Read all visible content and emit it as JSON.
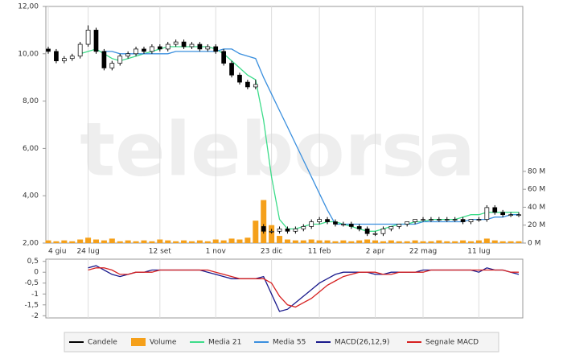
{
  "watermark": "teleborsa",
  "chart_data": [
    {
      "type": "candlestick",
      "categories": [
        "4 giu",
        null,
        null,
        null,
        null,
        "24 lug",
        null,
        null,
        null,
        null,
        null,
        null,
        null,
        null,
        "12 set",
        null,
        null,
        null,
        null,
        null,
        null,
        "1 nov",
        null,
        null,
        null,
        null,
        null,
        null,
        "23 dic",
        null,
        null,
        null,
        null,
        null,
        "11 feb",
        null,
        null,
        null,
        null,
        null,
        null,
        "2 apr",
        null,
        null,
        null,
        null,
        null,
        "22 mag",
        null,
        null,
        null,
        null,
        null,
        null,
        "11 lug",
        null,
        null,
        null,
        null,
        null
      ],
      "candles": {
        "name": "Candele",
        "color": "#000000",
        "open": [
          10.2,
          10.1,
          9.7,
          9.8,
          9.9,
          10.4,
          11.0,
          10.1,
          9.4,
          9.6,
          9.9,
          10.0,
          10.2,
          10.1,
          10.3,
          10.2,
          10.4,
          10.5,
          10.3,
          10.4,
          10.2,
          10.3,
          10.1,
          9.6,
          9.1,
          8.8,
          8.6,
          2.7,
          2.5,
          2.5,
          2.6,
          2.5,
          2.6,
          2.7,
          2.9,
          3.0,
          2.9,
          2.8,
          2.8,
          2.7,
          2.6,
          2.4,
          2.4,
          2.6,
          2.7,
          2.8,
          2.9,
          3.0,
          3.0,
          3.0,
          3.0,
          3.0,
          3.0,
          2.9,
          3.0,
          3.0,
          3.5,
          3.3,
          3.2,
          3.2
        ],
        "high": [
          10.3,
          10.2,
          9.9,
          10.0,
          10.5,
          11.2,
          11.1,
          10.2,
          9.7,
          10.0,
          10.1,
          10.3,
          10.3,
          10.4,
          10.4,
          10.5,
          10.6,
          10.6,
          10.5,
          10.5,
          10.4,
          10.4,
          10.2,
          9.7,
          9.2,
          8.9,
          8.9,
          2.8,
          2.6,
          2.7,
          2.7,
          2.7,
          2.8,
          3.0,
          3.1,
          3.1,
          3.0,
          2.9,
          2.9,
          2.8,
          2.7,
          2.5,
          2.7,
          2.7,
          2.8,
          2.9,
          3.0,
          3.1,
          3.1,
          3.1,
          3.1,
          3.1,
          3.1,
          3.0,
          3.1,
          3.6,
          3.6,
          3.4,
          3.3,
          3.3
        ],
        "low": [
          10.0,
          9.6,
          9.6,
          9.7,
          9.8,
          10.3,
          10.0,
          9.3,
          9.3,
          9.5,
          9.8,
          9.9,
          10.0,
          10.0,
          10.1,
          10.1,
          10.3,
          10.2,
          10.2,
          10.1,
          10.1,
          10.0,
          9.5,
          9.0,
          8.7,
          8.5,
          8.5,
          2.4,
          2.4,
          2.4,
          2.4,
          2.4,
          2.5,
          2.6,
          2.8,
          2.8,
          2.7,
          2.7,
          2.6,
          2.5,
          2.3,
          2.3,
          2.3,
          2.5,
          2.6,
          2.7,
          2.8,
          2.9,
          2.9,
          2.9,
          2.9,
          2.9,
          2.8,
          2.8,
          2.9,
          2.9,
          3.2,
          3.1,
          3.1,
          3.1
        ],
        "close": [
          10.1,
          9.7,
          9.8,
          9.9,
          10.4,
          11.0,
          10.1,
          9.4,
          9.6,
          9.9,
          10.0,
          10.2,
          10.1,
          10.3,
          10.2,
          10.4,
          10.5,
          10.3,
          10.4,
          10.2,
          10.3,
          10.1,
          9.6,
          9.1,
          8.8,
          8.6,
          8.7,
          2.5,
          2.5,
          2.6,
          2.5,
          2.6,
          2.7,
          2.9,
          3.0,
          2.9,
          2.8,
          2.8,
          2.7,
          2.6,
          2.4,
          2.4,
          2.6,
          2.7,
          2.8,
          2.9,
          3.0,
          3.0,
          3.0,
          3.0,
          3.0,
          3.0,
          2.9,
          3.0,
          3.0,
          3.5,
          3.3,
          3.2,
          3.2,
          3.2
        ]
      },
      "series": [
        {
          "name": "Volume",
          "type": "bar",
          "axis": "y2",
          "color": "#f5a01a",
          "values": [
            3,
            2,
            3,
            2,
            4,
            6,
            4,
            3,
            5,
            2,
            3,
            2,
            3,
            2,
            4,
            3,
            2,
            3,
            2,
            3,
            2,
            4,
            3,
            5,
            4,
            6,
            25,
            48,
            20,
            8,
            4,
            3,
            3,
            4,
            3,
            3,
            2,
            3,
            2,
            3,
            4,
            3,
            2,
            3,
            2,
            2,
            3,
            2,
            2,
            3,
            2,
            2,
            3,
            2,
            3,
            5,
            3,
            2,
            2,
            2
          ]
        },
        {
          "name": "Media 21",
          "type": "line",
          "color": "#3ddc8a",
          "values": [
            null,
            null,
            null,
            null,
            10.0,
            10.1,
            10.2,
            10.0,
            9.8,
            9.7,
            9.8,
            9.9,
            10.0,
            10.1,
            10.2,
            10.3,
            10.3,
            10.3,
            10.3,
            10.3,
            10.3,
            10.2,
            10.0,
            9.7,
            9.4,
            9.1,
            8.9,
            7.2,
            4.8,
            3.0,
            2.6,
            2.6,
            2.7,
            2.8,
            2.8,
            2.9,
            2.9,
            2.8,
            2.7,
            2.6,
            2.5,
            2.5,
            2.6,
            2.7,
            2.8,
            2.8,
            2.9,
            2.9,
            3.0,
            3.0,
            3.0,
            3.0,
            3.1,
            3.2,
            3.2,
            3.3,
            3.3,
            3.3,
            3.3,
            3.3
          ]
        },
        {
          "name": "Media 55",
          "type": "line",
          "color": "#3a8fde",
          "values": [
            null,
            null,
            null,
            null,
            null,
            null,
            null,
            10.1,
            10.1,
            10.0,
            10.0,
            10.0,
            10.0,
            10.0,
            10.0,
            10.0,
            10.1,
            10.1,
            10.1,
            10.1,
            10.1,
            10.1,
            10.2,
            10.2,
            10.0,
            9.9,
            9.8,
            9.0,
            8.3,
            7.6,
            6.9,
            6.2,
            5.5,
            4.8,
            4.1,
            3.4,
            2.8,
            2.8,
            2.8,
            2.8,
            2.8,
            2.8,
            2.8,
            2.8,
            2.8,
            2.8,
            2.8,
            2.9,
            2.9,
            2.9,
            2.9,
            2.9,
            2.9,
            3.0,
            3.0,
            3.0,
            3.1,
            3.1,
            3.2,
            3.2
          ]
        }
      ],
      "ylim": [
        2,
        12
      ],
      "yticks": [
        {
          "value": 2,
          "label": "2,00"
        },
        {
          "value": 4,
          "label": "4,00"
        },
        {
          "value": 6,
          "label": "6,00"
        },
        {
          "value": 8,
          "label": "8,00"
        },
        {
          "value": 10,
          "label": "10,00"
        },
        {
          "value": 12,
          "label": "12,00"
        }
      ],
      "y2lim": [
        0,
        264
      ],
      "y2ticks": [
        {
          "value": 0,
          "label": "0 M"
        },
        {
          "value": 20,
          "label": "20 M"
        },
        {
          "value": 40,
          "label": "40 M"
        },
        {
          "value": 60,
          "label": "60 M"
        },
        {
          "value": 80,
          "label": "80 M"
        }
      ]
    },
    {
      "type": "line",
      "series": [
        {
          "name": "MACD(26,12,9)",
          "color": "#1a1a8c",
          "values": [
            null,
            null,
            null,
            null,
            null,
            0.2,
            0.3,
            0.1,
            -0.1,
            -0.2,
            -0.1,
            0.0,
            0.0,
            0.1,
            0.1,
            0.1,
            0.1,
            0.1,
            0.1,
            0.1,
            0.0,
            -0.1,
            -0.2,
            -0.3,
            -0.3,
            -0.3,
            -0.3,
            -0.2,
            -1.0,
            -1.8,
            -1.7,
            -1.4,
            -1.1,
            -0.8,
            -0.5,
            -0.3,
            -0.1,
            0.0,
            0.0,
            0.0,
            0.0,
            -0.1,
            -0.1,
            0.0,
            0.0,
            0.0,
            0.0,
            0.1,
            0.1,
            0.1,
            0.1,
            0.1,
            0.1,
            0.1,
            0.0,
            0.2,
            0.1,
            0.1,
            0.0,
            -0.1
          ]
        },
        {
          "name": "Segnale MACD",
          "color": "#d62020",
          "values": [
            null,
            null,
            null,
            null,
            null,
            0.1,
            0.2,
            0.2,
            0.1,
            -0.1,
            -0.1,
            0.0,
            0.0,
            0.0,
            0.1,
            0.1,
            0.1,
            0.1,
            0.1,
            0.1,
            0.1,
            0.0,
            -0.1,
            -0.2,
            -0.3,
            -0.3,
            -0.3,
            -0.3,
            -0.5,
            -1.1,
            -1.5,
            -1.6,
            -1.4,
            -1.2,
            -0.9,
            -0.6,
            -0.4,
            -0.2,
            -0.1,
            0.0,
            0.0,
            0.0,
            -0.1,
            -0.1,
            0.0,
            0.0,
            0.0,
            0.0,
            0.1,
            0.1,
            0.1,
            0.1,
            0.1,
            0.1,
            0.1,
            0.1,
            0.1,
            0.1,
            0.0,
            0.0
          ]
        }
      ],
      "ylim": [
        -2.1,
        0.6
      ],
      "yticks": [
        {
          "value": 0.5,
          "label": "0,5"
        },
        0,
        {
          "value": -0.5,
          "label": "-0,5"
        },
        -1,
        {
          "value": -1.5,
          "label": "-1,5"
        },
        -2
      ]
    }
  ]
}
